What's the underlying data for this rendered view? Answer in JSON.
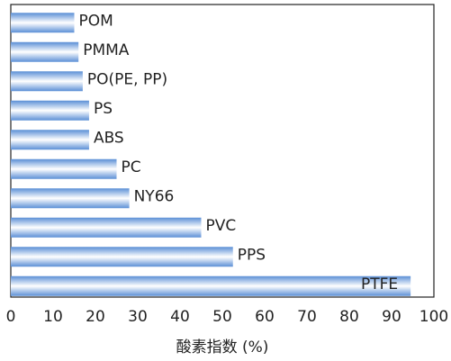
{
  "chart_data": {
    "type": "barh",
    "x_label": "酸素指数 (%)",
    "categories": [
      "POM",
      "PMMA",
      "PO(PE, PP)",
      "PS",
      "ABS",
      "PC",
      "NY66",
      "PVC",
      "PPS",
      "PTFE"
    ],
    "values": [
      15,
      16,
      17,
      18.5,
      18.5,
      25,
      28,
      45,
      52.5,
      94.5
    ],
    "color": "#5b8fd6",
    "xlim": [
      0,
      100
    ],
    "xticks": [
      0,
      10,
      20,
      30,
      40,
      50,
      60,
      70,
      80,
      90,
      100
    ],
    "grid": false
  }
}
